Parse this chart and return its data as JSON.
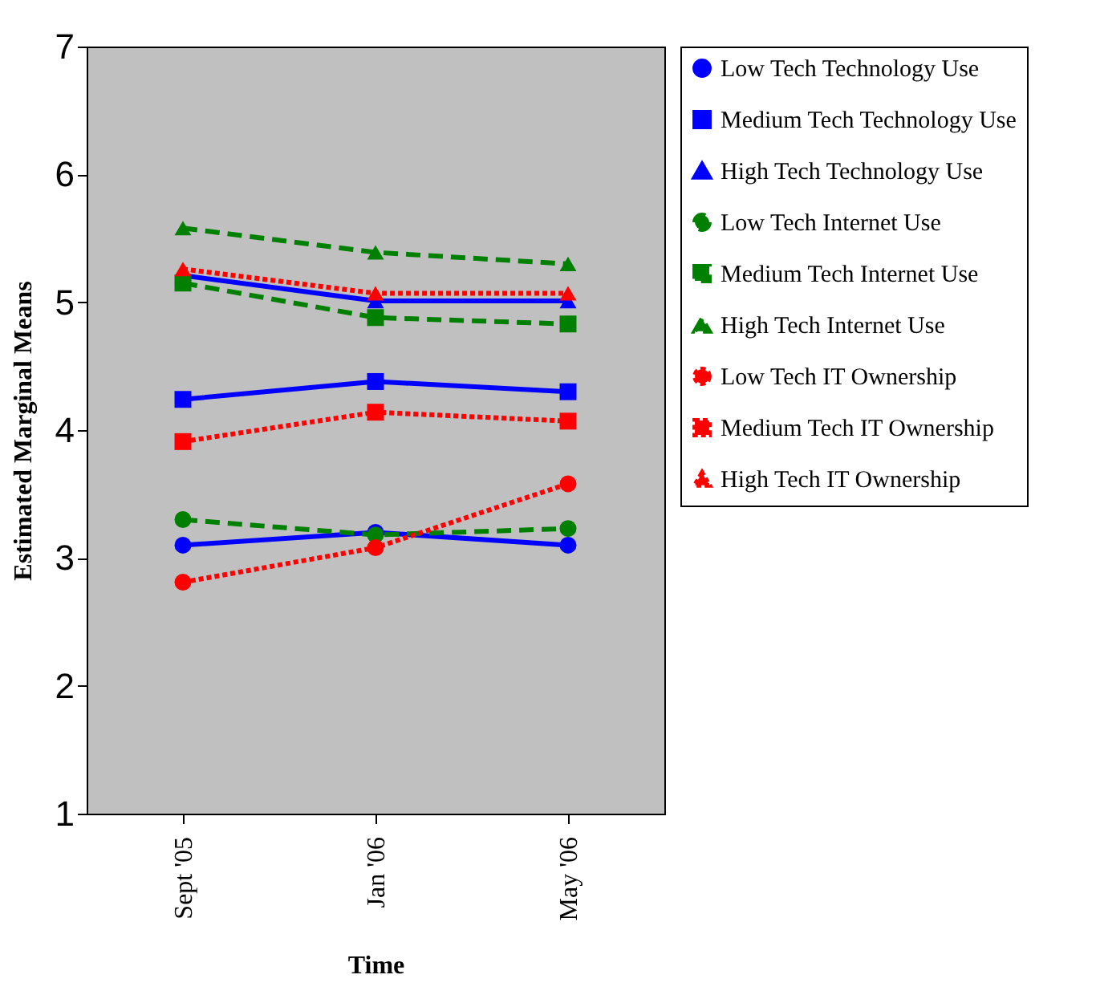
{
  "chart_data": {
    "type": "line",
    "xlabel": "Time",
    "ylabel": "Estimated Marginal Means",
    "categories": [
      "Sept '05",
      "Jan '06",
      "May '06"
    ],
    "ylim": [
      1,
      7
    ],
    "yticks": [
      1,
      2,
      3,
      4,
      5,
      6,
      7
    ],
    "grid": false,
    "legend": "right",
    "series": [
      {
        "name": "Low Tech Technology Use",
        "color": "#0000ff",
        "marker": "circle",
        "line_style": "solid",
        "values": [
          3.1,
          3.2,
          3.1
        ]
      },
      {
        "name": "Medium Tech Technology Use",
        "color": "#0000ff",
        "marker": "square",
        "line_style": "solid",
        "values": [
          4.24,
          4.38,
          4.3
        ]
      },
      {
        "name": "High Tech Technology Use",
        "color": "#0000ff",
        "marker": "triangle",
        "line_style": "solid",
        "values": [
          5.21,
          5.01,
          5.01
        ]
      },
      {
        "name": "Low Tech Internet Use",
        "color": "#008000",
        "marker": "circle",
        "line_style": "dashed",
        "values": [
          3.3,
          3.18,
          3.23
        ]
      },
      {
        "name": "Medium Tech Internet Use",
        "color": "#008000",
        "marker": "square",
        "line_style": "dashed",
        "values": [
          5.15,
          4.88,
          4.83
        ]
      },
      {
        "name": "High Tech Internet Use",
        "color": "#008000",
        "marker": "triangle",
        "line_style": "dashed",
        "values": [
          5.58,
          5.39,
          5.3
        ]
      },
      {
        "name": "Low Tech IT Ownership",
        "color": "#ff0000",
        "marker": "circle",
        "line_style": "dotted",
        "values": [
          2.81,
          3.08,
          3.58
        ]
      },
      {
        "name": "Medium Tech IT Ownership",
        "color": "#ff0000",
        "marker": "square",
        "line_style": "dotted",
        "values": [
          3.91,
          4.14,
          4.07
        ]
      },
      {
        "name": "High Tech IT Ownership",
        "color": "#ff0000",
        "marker": "triangle",
        "line_style": "dotted",
        "values": [
          5.26,
          5.07,
          5.07
        ]
      }
    ]
  }
}
